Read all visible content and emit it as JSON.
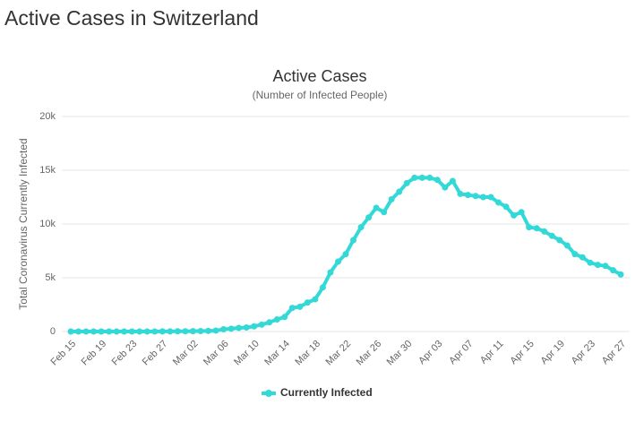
{
  "page_title": "Active Cases in Switzerland",
  "chart_data": {
    "type": "line",
    "title": "Active Cases",
    "subtitle": "(Number of Infected People)",
    "y_label": "Total Coronavirus Currently Infected",
    "categories": [
      "Feb 15",
      null,
      null,
      null,
      "Feb 19",
      null,
      null,
      null,
      "Feb 23",
      null,
      null,
      null,
      "Feb 27",
      null,
      null,
      null,
      "Mar 02",
      null,
      null,
      null,
      "Mar 06",
      null,
      null,
      null,
      "Mar 10",
      null,
      null,
      null,
      "Mar 14",
      null,
      null,
      null,
      "Mar 18",
      null,
      null,
      null,
      "Mar 22",
      null,
      null,
      null,
      "Mar 26",
      null,
      null,
      null,
      "Mar 30",
      null,
      null,
      null,
      "Apr 03",
      null,
      null,
      null,
      "Apr 07",
      null,
      null,
      null,
      "Apr 11",
      null,
      null,
      null,
      "Apr 15",
      null,
      null,
      null,
      "Apr 19",
      null,
      null,
      null,
      "Apr 23",
      null,
      null,
      null,
      "Apr 27"
    ],
    "series": [
      {
        "name": "Currently Infected",
        "color": "#33d9d6",
        "values": [
          0,
          0,
          0,
          0,
          0,
          0,
          0,
          0,
          0,
          0,
          1,
          1,
          8,
          8,
          18,
          24,
          30,
          37,
          56,
          87,
          209,
          264,
          335,
          370,
          480,
          640,
          850,
          1120,
          1350,
          2200,
          2300,
          2700,
          3000,
          4100,
          5500,
          6500,
          7200,
          8500,
          9700,
          10600,
          11500,
          11100,
          12300,
          13000,
          13800,
          14300,
          14300,
          14300,
          14100,
          13400,
          14000,
          12800,
          12700,
          12600,
          12500,
          12500,
          12000,
          11600,
          10800,
          11100,
          9700,
          9600,
          9300,
          8900,
          8500,
          8000,
          7200,
          6900,
          6400,
          6200,
          6100,
          5700,
          5300
        ]
      }
    ],
    "ylim": [
      0,
      20000
    ],
    "yticks": [
      0,
      {
        "value": 5000,
        "label": "5k"
      },
      {
        "value": 10000,
        "label": "10k"
      },
      {
        "value": 15000,
        "label": "15k"
      },
      {
        "value": 20000,
        "label": "20k"
      }
    ],
    "grid": true,
    "legend": "bottom"
  }
}
